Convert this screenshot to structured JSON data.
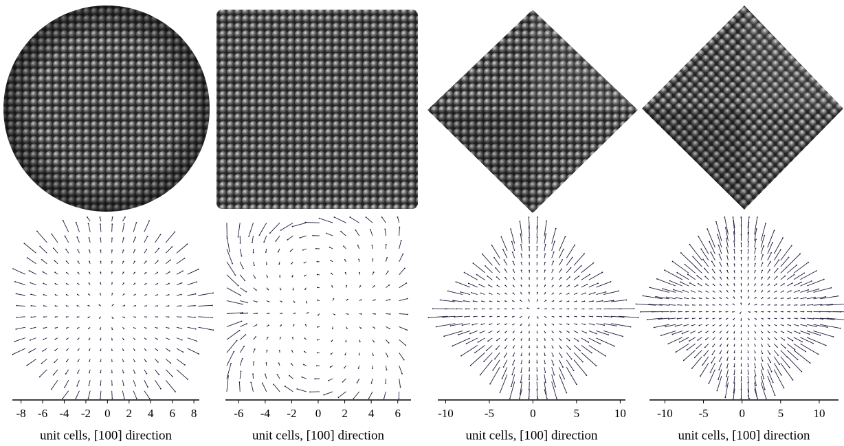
{
  "chart_data": [
    {
      "type": "quiver",
      "xlabel": "unit cells, [100] direction",
      "xlim": [
        -8.8,
        8.5
      ],
      "xticks": [
        -8,
        -6,
        -4,
        -2,
        0,
        2,
        4,
        6,
        8
      ]
    },
    {
      "type": "quiver",
      "xlabel": "unit cells, [100] direction",
      "xlim": [
        -7,
        7
      ],
      "xticks": [
        -6,
        -4,
        -2,
        0,
        2,
        4,
        6
      ]
    },
    {
      "type": "quiver",
      "xlabel": "unit cells, [100] direction",
      "xlim": [
        -10.9,
        10.6
      ],
      "xticks": [
        -10,
        -5,
        0,
        5,
        10
      ]
    },
    {
      "type": "quiver",
      "xlabel": "unit cells, [100] direction",
      "xlim": [
        -12,
        12.5
      ],
      "xticks": [
        -10,
        -5,
        0,
        5,
        10
      ]
    }
  ]
}
